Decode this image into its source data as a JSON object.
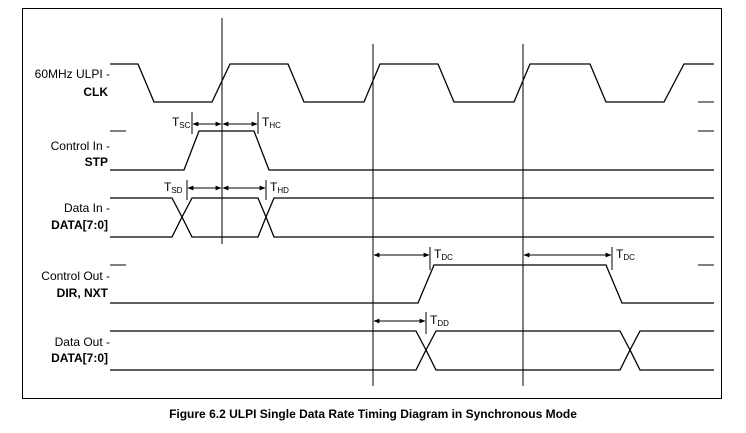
{
  "signals": {
    "clk": {
      "line1": "60MHz ULPI -",
      "line2": "CLK"
    },
    "stp": {
      "line1": "Control In -",
      "line2": "STP"
    },
    "data_in": {
      "line1": "Data In -",
      "line2": "DATA[7:0]"
    },
    "dir_nxt": {
      "line1": "Control Out -",
      "line2": "DIR, NXT"
    },
    "data_out": {
      "line1": "Data Out -",
      "line2": "DATA[7:0]"
    }
  },
  "timing": {
    "tsc": {
      "main": "T",
      "sub": "SC"
    },
    "thc": {
      "main": "T",
      "sub": "HC"
    },
    "tsd": {
      "main": "T",
      "sub": "SD"
    },
    "thd": {
      "main": "T",
      "sub": "HD"
    },
    "tdc_1": {
      "main": "T",
      "sub": "DC"
    },
    "tdc_2": {
      "main": "T",
      "sub": "DC"
    },
    "tdd": {
      "main": "T",
      "sub": "DD"
    }
  },
  "caption": "Figure 6.2 ULPI Single Data Rate Timing Diagram in Synchronous Mode"
}
